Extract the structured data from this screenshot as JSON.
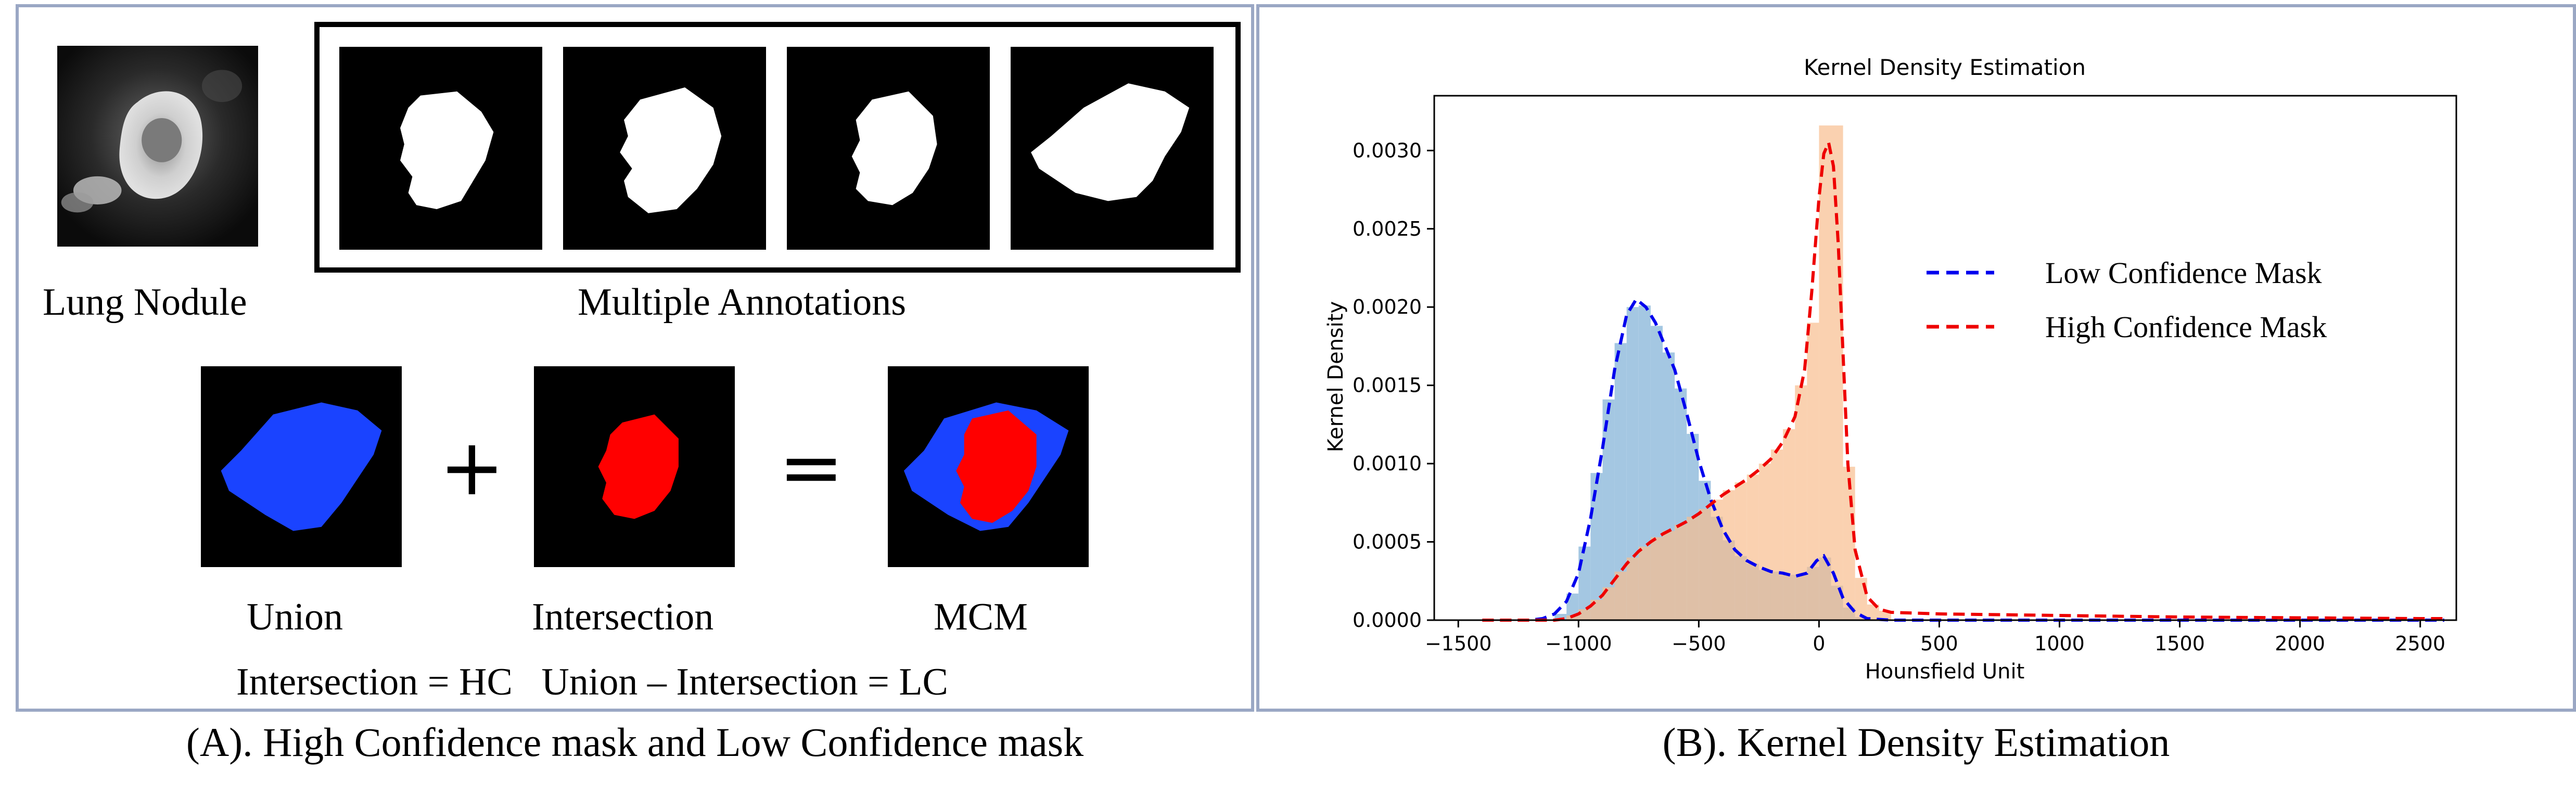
{
  "panel_a": {
    "nodule_label": "Lung Nodule",
    "annotations_label": "Multiple Annotations",
    "union_label": "Union",
    "intersection_label": "Intersection",
    "mcm_label": "MCM",
    "plus_symbol": "+",
    "equals_symbol": "=",
    "formula": "Intersection = HC   Union – Intersection = LC",
    "colors": {
      "union": "#1a43ff",
      "intersection": "#ff0000",
      "mask_bg": "#000000",
      "mask_fg": "#ffffff"
    }
  },
  "captions": {
    "a": "(A). High Confidence mask and Low Confidence mask",
    "b": "(B). Kernel Density Estimation"
  },
  "chart_data": {
    "type": "histogram+kde",
    "title": "Kernel Density Estimation",
    "xlabel": "Hounsfield Unit",
    "ylabel": "Kernel Density",
    "xlim": [
      -1600,
      2650
    ],
    "ylim": [
      0,
      0.00335
    ],
    "xticks": [
      -1500,
      -1000,
      -500,
      0,
      500,
      1000,
      1500,
      2000,
      2500
    ],
    "xtick_labels": [
      "−1500",
      "−1000",
      "−500",
      "0",
      "500",
      "1000",
      "1500",
      "2000",
      "2500"
    ],
    "yticks": [
      0,
      0.0005,
      0.001,
      0.0015,
      0.002,
      0.0025,
      0.003
    ],
    "ytick_labels": [
      "0.0000",
      "0.0005",
      "0.0010",
      "0.0015",
      "0.0020",
      "0.0025",
      "0.0030"
    ],
    "legend_placement": "upper-right",
    "grid": false,
    "bin_width": 50,
    "series": [
      {
        "name": "Low Confidence Mask",
        "line_color": "#0000ee",
        "fill_color": "#9fc4e0",
        "line_style": "dashed",
        "kde": [
          [
            -1400,
            0
          ],
          [
            -1200,
            0
          ],
          [
            -1150,
            1e-05
          ],
          [
            -1100,
            4e-05
          ],
          [
            -1050,
            0.00012
          ],
          [
            -1000,
            0.0003
          ],
          [
            -950,
            0.00065
          ],
          [
            -900,
            0.0011
          ],
          [
            -850,
            0.0016
          ],
          [
            -800,
            0.00195
          ],
          [
            -760,
            0.00205
          ],
          [
            -720,
            0.002
          ],
          [
            -680,
            0.0019
          ],
          [
            -640,
            0.00175
          ],
          [
            -600,
            0.0016
          ],
          [
            -550,
            0.00132
          ],
          [
            -500,
            0.00102
          ],
          [
            -450,
            0.00077
          ],
          [
            -400,
            0.00058
          ],
          [
            -350,
            0.00045
          ],
          [
            -300,
            0.00038
          ],
          [
            -250,
            0.00034
          ],
          [
            -200,
            0.00031
          ],
          [
            -150,
            0.0003
          ],
          [
            -100,
            0.00028
          ],
          [
            -50,
            0.0003
          ],
          [
            -10,
            0.00038
          ],
          [
            20,
            0.00041
          ],
          [
            60,
            0.0003
          ],
          [
            100,
            0.00014
          ],
          [
            150,
            5e-05
          ],
          [
            200,
            1e-05
          ],
          [
            300,
            0
          ],
          [
            500,
            0
          ],
          [
            1000,
            0
          ],
          [
            2000,
            0
          ],
          [
            2600,
            0
          ]
        ],
        "histogram": [
          [
            -1075,
            4e-05
          ],
          [
            -1025,
            0.00017
          ],
          [
            -975,
            0.00047
          ],
          [
            -925,
            0.00094
          ],
          [
            -875,
            0.00141
          ],
          [
            -825,
            0.00177
          ],
          [
            -775,
            0.002
          ],
          [
            -725,
            0.00201
          ],
          [
            -675,
            0.00188
          ],
          [
            -625,
            0.00171
          ],
          [
            -575,
            0.00148
          ],
          [
            -525,
            0.00119
          ],
          [
            -475,
            0.00089
          ],
          [
            -425,
            0.00066
          ],
          [
            -375,
            0.00051
          ],
          [
            -325,
            0.00041
          ],
          [
            -275,
            0.00036
          ],
          [
            -225,
            0.00032
          ],
          [
            -175,
            0.00031
          ],
          [
            -125,
            0.00029
          ],
          [
            -75,
            0.00029
          ],
          [
            -25,
            0.00034
          ],
          [
            25,
            0.0004
          ],
          [
            75,
            0.00022
          ],
          [
            125,
            8e-05
          ],
          [
            175,
            2e-05
          ]
        ]
      },
      {
        "name": "High Confidence Mask",
        "line_color": "#ee0000",
        "fill_color": "#f8bd8f",
        "line_style": "dashed",
        "kde": [
          [
            -1400,
            0
          ],
          [
            -1100,
            0
          ],
          [
            -1050,
            1e-05
          ],
          [
            -1000,
            4e-05
          ],
          [
            -950,
            9e-05
          ],
          [
            -900,
            0.00016
          ],
          [
            -850,
            0.00026
          ],
          [
            -800,
            0.00036
          ],
          [
            -750,
            0.00044
          ],
          [
            -700,
            0.0005
          ],
          [
            -650,
            0.00055
          ],
          [
            -600,
            0.00059
          ],
          [
            -550,
            0.00063
          ],
          [
            -500,
            0.00068
          ],
          [
            -450,
            0.00074
          ],
          [
            -400,
            0.0008
          ],
          [
            -350,
            0.00085
          ],
          [
            -300,
            0.0009
          ],
          [
            -250,
            0.00096
          ],
          [
            -200,
            0.00103
          ],
          [
            -150,
            0.00114
          ],
          [
            -100,
            0.0013
          ],
          [
            -60,
            0.0016
          ],
          [
            -30,
            0.0021
          ],
          [
            0,
            0.0027
          ],
          [
            20,
            0.00298
          ],
          [
            40,
            0.00305
          ],
          [
            60,
            0.0029
          ],
          [
            80,
            0.0024
          ],
          [
            100,
            0.0017
          ],
          [
            120,
            0.001
          ],
          [
            150,
            0.00045
          ],
          [
            200,
            0.00015
          ],
          [
            250,
            7e-05
          ],
          [
            300,
            5e-05
          ],
          [
            500,
            4e-05
          ],
          [
            1000,
            3e-05
          ],
          [
            1500,
            2e-05
          ],
          [
            2000,
            1.5e-05
          ],
          [
            2500,
            1e-05
          ],
          [
            2600,
            1e-05
          ]
        ],
        "histogram": [
          [
            -1025,
            3e-05
          ],
          [
            -975,
            7e-05
          ],
          [
            -925,
            0.00013
          ],
          [
            -875,
            0.00021
          ],
          [
            -825,
            0.00031
          ],
          [
            -775,
            0.0004
          ],
          [
            -725,
            0.00047
          ],
          [
            -675,
            0.00053
          ],
          [
            -625,
            0.00057
          ],
          [
            -575,
            0.00061
          ],
          [
            -525,
            0.00066
          ],
          [
            -475,
            0.00071
          ],
          [
            -425,
            0.00077
          ],
          [
            -375,
            0.00083
          ],
          [
            -325,
            0.00088
          ],
          [
            -275,
            0.00093
          ],
          [
            -225,
            0.001
          ],
          [
            -175,
            0.00109
          ],
          [
            -125,
            0.00122
          ],
          [
            -75,
            0.0015
          ],
          [
            -25,
            0.0019
          ],
          [
            25,
            0.00316
          ],
          [
            75,
            0.00316
          ],
          [
            125,
            0.00098
          ],
          [
            175,
            0.00027
          ],
          [
            225,
            0.0001
          ],
          [
            275,
            6e-05
          ]
        ]
      }
    ]
  }
}
